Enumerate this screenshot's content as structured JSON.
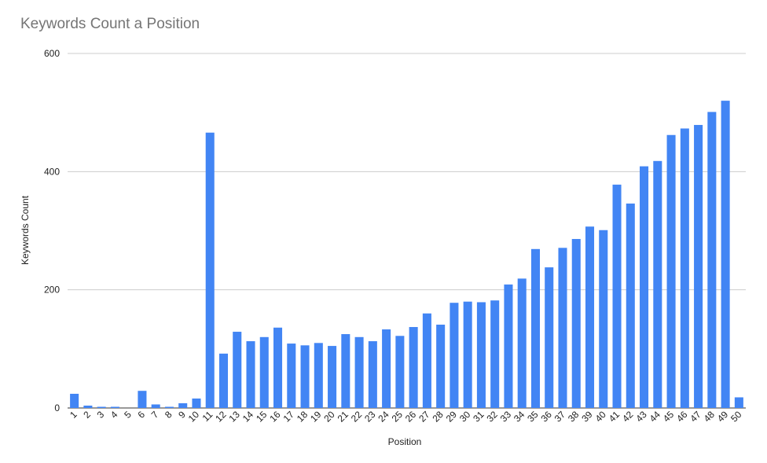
{
  "chart_data": {
    "type": "bar",
    "title": "Keywords Count a Position",
    "xlabel": "Position",
    "ylabel": "Keywords Count",
    "ylim": [
      0,
      600
    ],
    "yticks": [
      "0",
      "200",
      "400",
      "600"
    ],
    "grid": true,
    "bar_color": "#4285f4",
    "categories": [
      "1",
      "2",
      "3",
      "4",
      "5",
      "6",
      "7",
      "8",
      "9",
      "10",
      "11",
      "12",
      "13",
      "14",
      "15",
      "16",
      "17",
      "18",
      "19",
      "20",
      "21",
      "22",
      "23",
      "24",
      "25",
      "26",
      "27",
      "28",
      "29",
      "30",
      "31",
      "32",
      "33",
      "34",
      "35",
      "36",
      "37",
      "38",
      "39",
      "40",
      "41",
      "42",
      "43",
      "44",
      "45",
      "46",
      "47",
      "48",
      "49",
      "50"
    ],
    "values": [
      24,
      4,
      2,
      2,
      0,
      29,
      6,
      2,
      8,
      16,
      466,
      92,
      129,
      113,
      120,
      136,
      109,
      106,
      110,
      105,
      125,
      120,
      113,
      133,
      122,
      137,
      160,
      141,
      178,
      180,
      179,
      182,
      209,
      219,
      269,
      238,
      271,
      286,
      307,
      301,
      378,
      346,
      409,
      418,
      462,
      473,
      479,
      501,
      520,
      18
    ]
  }
}
